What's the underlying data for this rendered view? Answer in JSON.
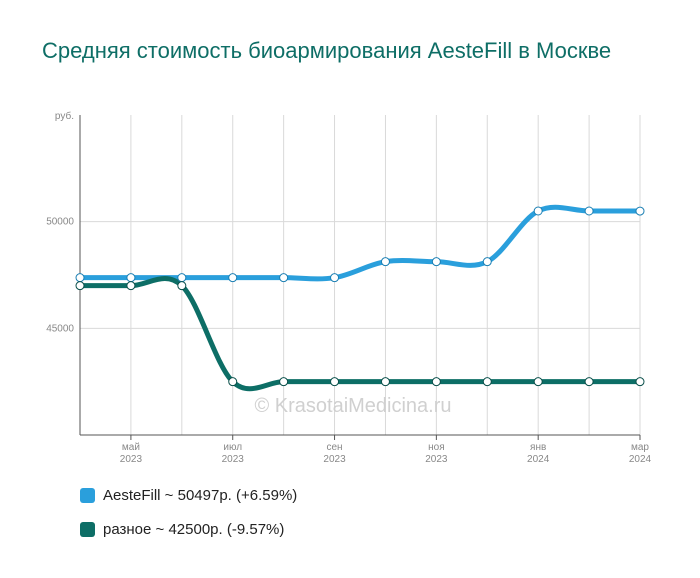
{
  "chart_data": {
    "type": "line",
    "title": "Средняя стоимость биоармирования AesteFill в Москве",
    "yunit": "руб.",
    "ylim": [
      40000,
      55000
    ],
    "yticks": [
      45000,
      50000
    ],
    "x_labels": [
      {
        "month": "май",
        "year": "2023"
      },
      {
        "month": "июл",
        "year": "2023"
      },
      {
        "month": "сен",
        "year": "2023"
      },
      {
        "month": "ноя",
        "year": "2023"
      },
      {
        "month": "янв",
        "year": "2024"
      },
      {
        "month": "мар",
        "year": "2024"
      }
    ],
    "categories": [
      "2023-04",
      "2023-05",
      "2023-06",
      "2023-07",
      "2023-08",
      "2023-09",
      "2023-10",
      "2023-11",
      "2023-12",
      "2024-01",
      "2024-02",
      "2024-03"
    ],
    "series": [
      {
        "name": "AesteFill",
        "color": "#2a9fdc",
        "values": [
          47375,
          47375,
          47375,
          47375,
          47375,
          47375,
          48125,
          48125,
          48125,
          50500,
          50500,
          50497
        ]
      },
      {
        "name": "разное",
        "color": "#0d6e66",
        "values": [
          47000,
          47000,
          47000,
          42500,
          42500,
          42500,
          42500,
          42500,
          42500,
          42500,
          42500,
          42500
        ]
      }
    ],
    "grid": true,
    "legend_position": "bottom-left"
  },
  "legend": [
    {
      "label": "AesteFill ~ 50497р. (+6.59%)",
      "color": "#2a9fdc"
    },
    {
      "label": "разное ~ 42500р. (-9.57%)",
      "color": "#0d6e66"
    }
  ],
  "watermark": "© KrasotaiMedicina.ru"
}
